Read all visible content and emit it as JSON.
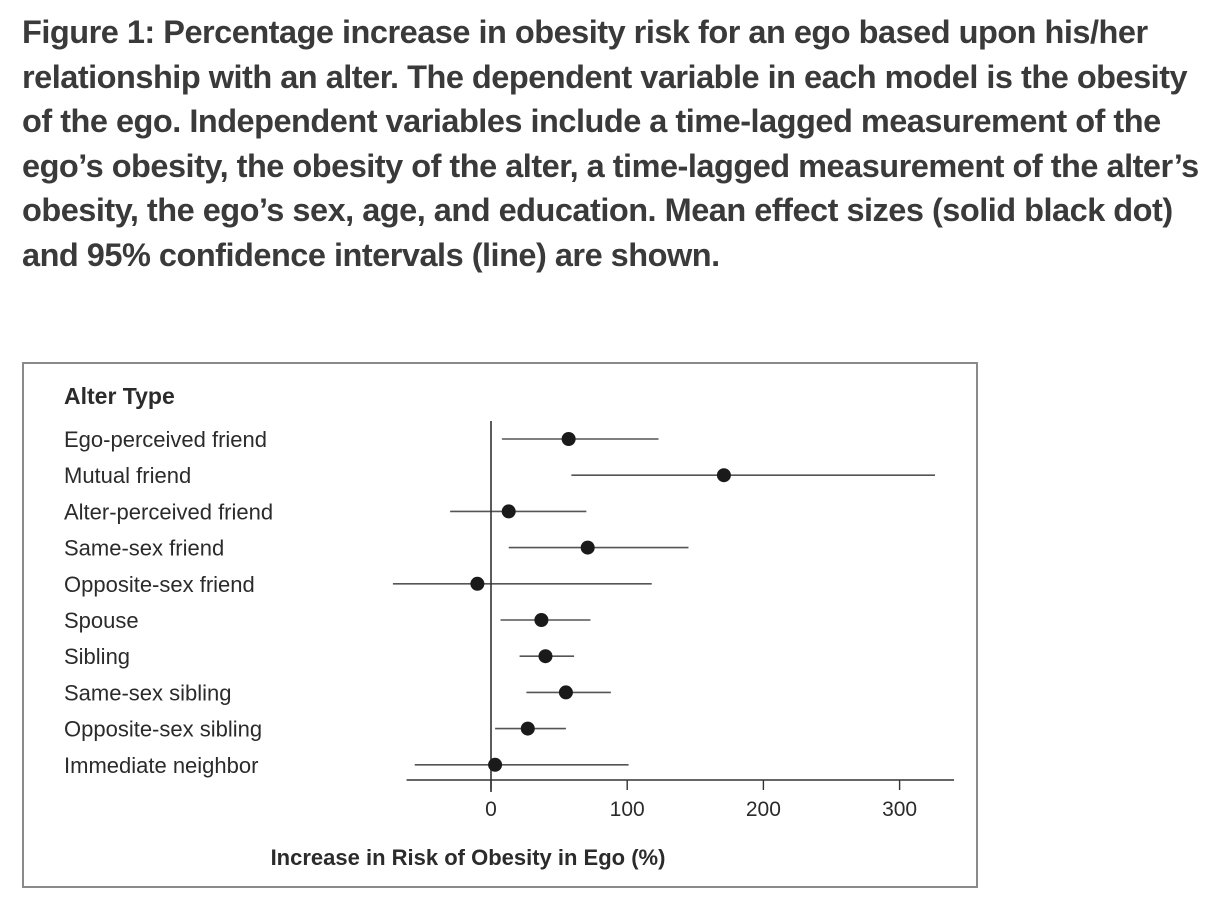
{
  "caption": "Figure 1: Percentage increase in obesity risk for an ego based upon his/her relationship with an alter. The dependent variable in each model is the obesity of the ego. Independent variables include a time-lagged measurement of the ego’s obesity, the obesity of the alter, a time-lagged measurement of the alter’s obesity, the ego’s sex, age, and education. Mean effect sizes (solid black dot) and 95% confidence intervals (line) are shown.",
  "chart_data": {
    "type": "forest",
    "row_header": "Alter Type",
    "xlabel": "Increase in Risk of Obesity in Ego (%)",
    "xlim": [
      -62,
      340
    ],
    "xticks": [
      0,
      100,
      200,
      300
    ],
    "reference_line": 0,
    "marker": "solid black dot (mean); line (95% CI)",
    "colors": {
      "marker": "#1a1a1a",
      "line": "#555555",
      "axis": "#333333"
    },
    "rows": [
      {
        "label": "Ego-perceived friend",
        "mean": 57,
        "low": 8,
        "high": 123
      },
      {
        "label": "Mutual friend",
        "mean": 171,
        "low": 59,
        "high": 326
      },
      {
        "label": "Alter-perceived friend",
        "mean": 13,
        "low": -30,
        "high": 70
      },
      {
        "label": "Same-sex friend",
        "mean": 71,
        "low": 13,
        "high": 145
      },
      {
        "label": "Opposite-sex friend",
        "mean": -10,
        "low": -72,
        "high": 118
      },
      {
        "label": "Spouse",
        "mean": 37,
        "low": 7,
        "high": 73
      },
      {
        "label": "Sibling",
        "mean": 40,
        "low": 21,
        "high": 61
      },
      {
        "label": "Same-sex sibling",
        "mean": 55,
        "low": 26,
        "high": 88
      },
      {
        "label": "Opposite-sex sibling",
        "mean": 27,
        "low": 3,
        "high": 55
      },
      {
        "label": "Immediate neighbor",
        "mean": 3,
        "low": -56,
        "high": 101
      }
    ]
  }
}
